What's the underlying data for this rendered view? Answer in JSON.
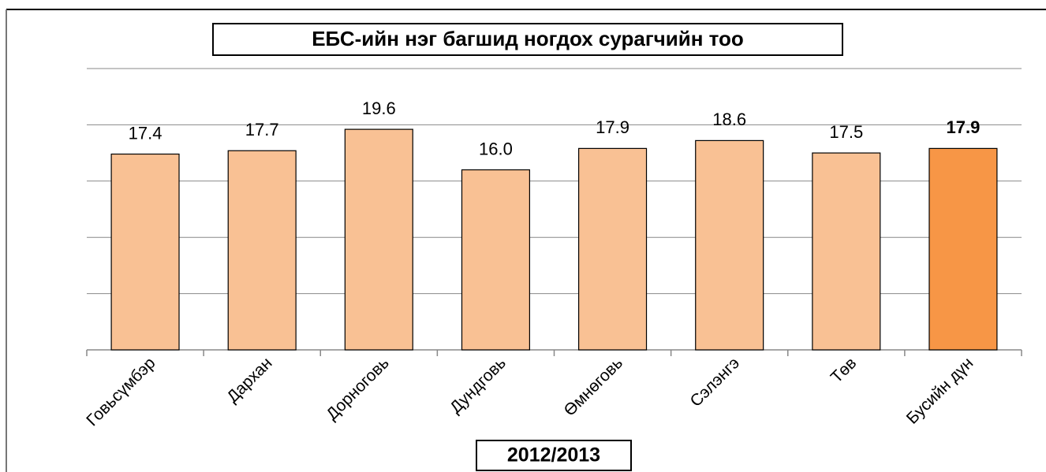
{
  "chart_data": {
    "type": "bar",
    "title": "ЕБС-ийн нэг багшид ногдох сурагчийн тоо",
    "subtitle": "2012/2013",
    "categories": [
      "Говьсүмбэр",
      "Дархан",
      "Дорноговь",
      "Дундговь",
      "Өмнөговь",
      "Сэлэнгэ",
      "Төв",
      "Бусийн дүн"
    ],
    "values": [
      17.4,
      17.7,
      19.6,
      16.0,
      17.9,
      18.6,
      17.5,
      17.9
    ],
    "value_labels": [
      "17.4",
      "17.7",
      "19.6",
      "16.0",
      "17.9",
      "18.6",
      "17.5",
      "17.9"
    ],
    "colors": [
      "#f9c194",
      "#f9c194",
      "#f9c194",
      "#f9c194",
      "#f9c194",
      "#f9c194",
      "#f9c194",
      "#f79646"
    ],
    "bold_value_labels": [
      false,
      false,
      false,
      false,
      false,
      false,
      false,
      true
    ],
    "ylim": [
      0,
      25
    ],
    "yticks": [
      0,
      5,
      10,
      15,
      20,
      25
    ],
    "grid": true
  }
}
